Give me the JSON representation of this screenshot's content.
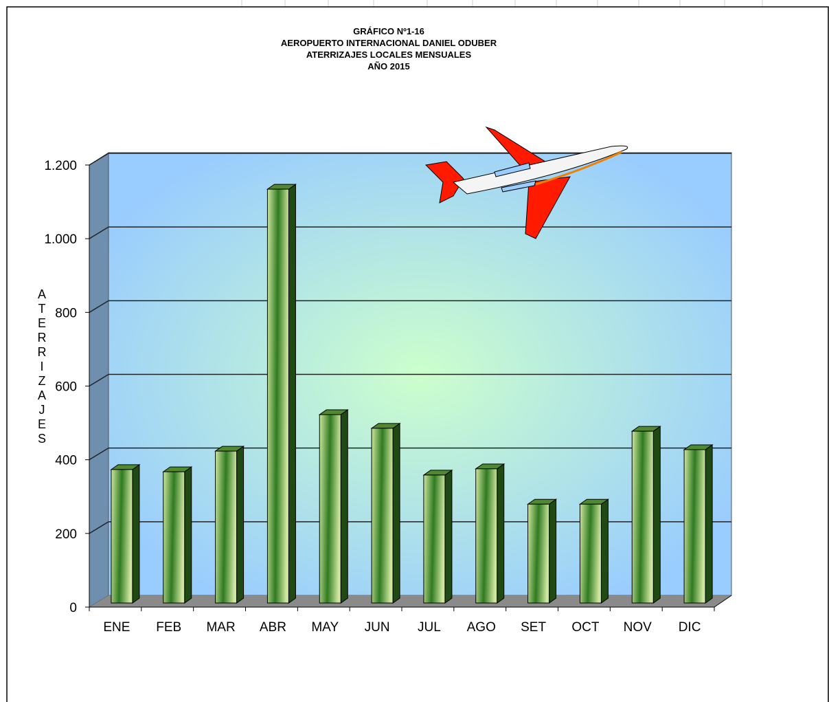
{
  "chart_data": {
    "type": "bar3d",
    "title": "GRÁFICO Nº1-16",
    "subtitle": [
      "AEROPUERTO  INTERNACIONAL  DANIEL  ODUBER",
      "ATERRIZAJES LOCALES MENSUALES",
      "AÑO 2015"
    ],
    "y_label": "ATERRIZAJES",
    "categories": [
      "ENE",
      "FEB",
      "MAR",
      "ABR",
      "MAY",
      "JUN",
      "JUL",
      "AGO",
      "SET",
      "OCT",
      "NOV",
      "DIC"
    ],
    "values": [
      366,
      360,
      416,
      1127,
      515,
      478,
      351,
      368,
      272,
      272,
      470,
      420
    ],
    "color": "#3c7a22",
    "ylim": [
      0,
      1200
    ],
    "yticks": [
      0,
      200,
      400,
      600,
      800,
      {
        "value": 1000,
        "label": "1.000"
      },
      {
        "value": 1200,
        "label": "1.200"
      }
    ],
    "grid": true
  }
}
